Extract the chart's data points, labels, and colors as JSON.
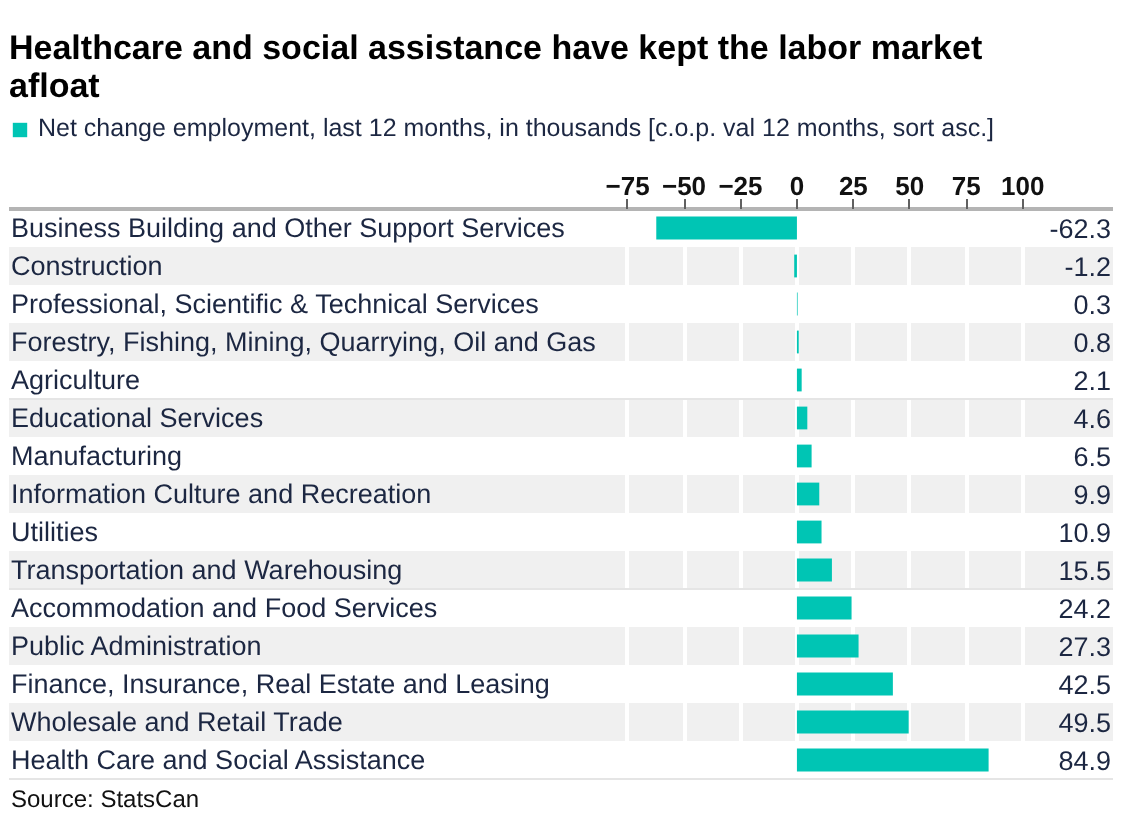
{
  "chart_data": {
    "type": "bar",
    "orientation": "horizontal",
    "title": "Healthcare and social assistance have kept the labor market afloat",
    "categories": [
      "Business Building and Other Support Services",
      "Construction",
      "Professional, Scientific & Technical Services",
      "Forestry, Fishing, Mining, Quarrying, Oil and Gas",
      "Agriculture",
      "Educational Services",
      "Manufacturing",
      "Information Culture and Recreation",
      "Utilities",
      "Transportation and Warehousing",
      "Accommodation and Food Services",
      "Public Administration",
      "Finance, Insurance, Real Estate and Leasing",
      "Wholesale and Retail Trade",
      "Health Care and Social Assistance"
    ],
    "series": [
      {
        "name": "Net change employment, last 12 months, in thousands [c.o.p. val 12 months, sort asc.]",
        "color": "#00c5b4",
        "values": [
          -62.3,
          -1.2,
          0.3,
          0.8,
          2.1,
          4.6,
          6.5,
          9.9,
          10.9,
          15.5,
          24.2,
          27.3,
          42.5,
          49.5,
          84.9
        ]
      }
    ],
    "xlim": [
      -349,
      140
    ],
    "xticks": [
      -75,
      -50,
      -25,
      0,
      25,
      50,
      75,
      100
    ],
    "grid": "x",
    "legend": "top left",
    "data_labels": true,
    "annotations": [
      "Source: StatsCan"
    ]
  }
}
